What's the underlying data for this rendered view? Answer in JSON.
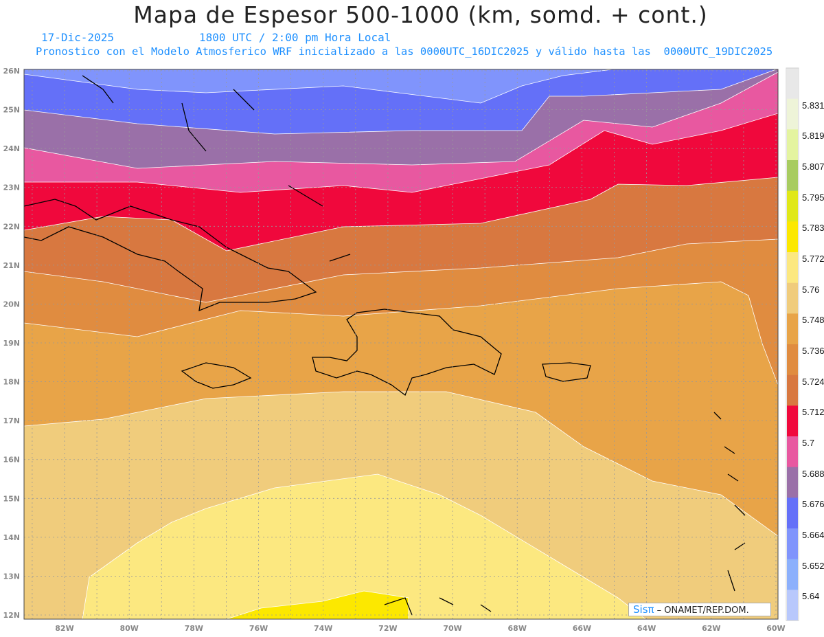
{
  "header": {
    "title": "Mapa de Espesor 500-1000 (km, somd. + cont.)",
    "date": "17-Dic-2025",
    "time": "1800 UTC / 2:00 pm Hora Local",
    "description": "Pronostico con el Modelo Atmosferico WRF inicializado a las 0000UTC_16DIC2025 y válido hasta las  0000UTC_19DIC2025"
  },
  "axes": {
    "lat_labels": [
      "26N",
      "25N",
      "24N",
      "23N",
      "22N",
      "21N",
      "20N",
      "19N",
      "18N",
      "17N",
      "16N",
      "15N",
      "14N",
      "13N",
      "12N"
    ],
    "lon_labels": [
      "82W",
      "80W",
      "78W",
      "76W",
      "74W",
      "72W",
      "70W",
      "68W",
      "66W",
      "64W",
      "62W",
      "60W"
    ]
  },
  "colorbar": {
    "levels": [
      "5.831",
      "5.819",
      "5.807",
      "5.795",
      "5.783",
      "5.772",
      "5.76",
      "5.748",
      "5.736",
      "5.724",
      "5.712",
      "5.7",
      "5.688",
      "5.676",
      "5.664",
      "5.652",
      "5.64"
    ],
    "colors": [
      "#e8e8e8",
      "#eef4d8",
      "#e4f4a0",
      "#a8cc60",
      "#e0e818",
      "#fce800",
      "#fce880",
      "#f0cc7c",
      "#e8a448",
      "#e08c40",
      "#d87840",
      "#f0083c",
      "#e858a0",
      "#9a70a8",
      "#6470f8",
      "#8094fc",
      "#8cb0fc",
      "#b8c8fc"
    ]
  },
  "credit": {
    "brand": "Sisπ",
    "text": " – ONAMET/REP.DOM."
  }
}
